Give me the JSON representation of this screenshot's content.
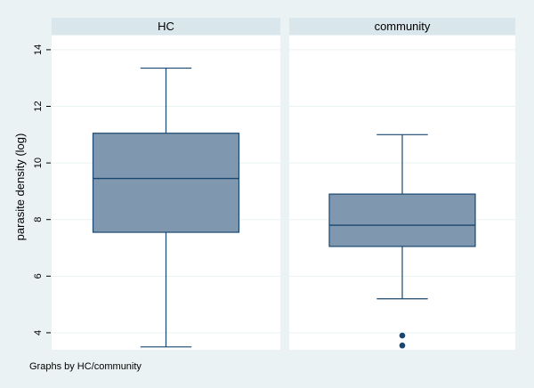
{
  "chart_data": {
    "type": "box",
    "ylabel": "parasite density (log)",
    "note": "Graphs by HC/community",
    "ylim": [
      3.4,
      14.5
    ],
    "yticks": [
      4,
      6,
      8,
      10,
      12,
      14
    ],
    "grid": true,
    "colors": {
      "background": "#eaf2f3",
      "panel": "#ffffff",
      "strip": "#d9e6eb",
      "box_fill": "#7f97af",
      "box_line": "#1a476f",
      "grid": "#eaf2f3"
    },
    "panels": [
      {
        "label": "HC",
        "whisker_low": 3.5,
        "q1": 7.55,
        "median": 9.45,
        "q3": 11.05,
        "whisker_high": 13.35,
        "outliers": []
      },
      {
        "label": "community",
        "whisker_low": 5.2,
        "q1": 7.05,
        "median": 7.8,
        "q3": 8.9,
        "whisker_high": 11.0,
        "outliers": [
          3.9,
          3.55
        ]
      }
    ]
  }
}
